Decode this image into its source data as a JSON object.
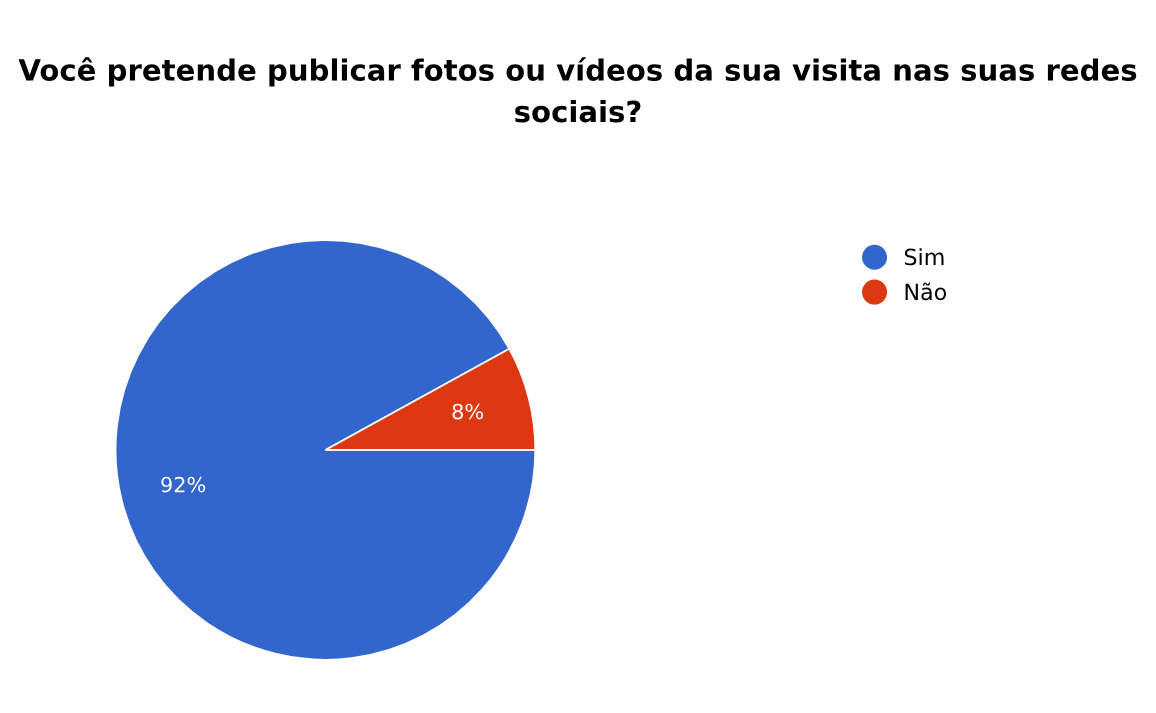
{
  "chart_data": {
    "type": "pie",
    "title": "Você pretende publicar fotos ou vídeos da sua visita nas suas redes sociais?",
    "categories": [
      "Sim",
      "Não"
    ],
    "values": [
      92,
      8
    ],
    "colors": [
      "#3366cc",
      "#dc3912"
    ],
    "value_labels": [
      "92%",
      "8%"
    ],
    "legend": "right"
  }
}
